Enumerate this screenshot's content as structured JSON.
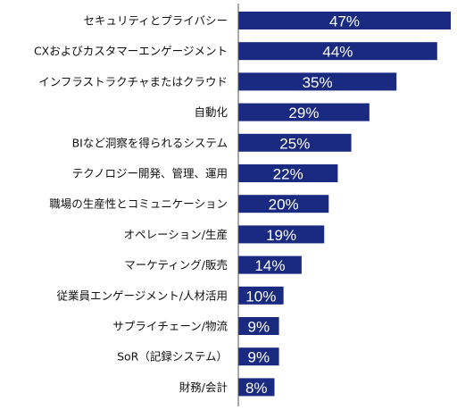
{
  "chart_data": {
    "type": "bar",
    "orientation": "horizontal",
    "title": "",
    "xlabel": "",
    "ylabel": "",
    "xlim": [
      0,
      47
    ],
    "grid": false,
    "legend": "none",
    "bar_color": "#1a2a80",
    "axis_color": "#555555",
    "value_suffix": "%",
    "categories": [
      "セキュリティとプライバシー",
      "CXおよびカスタマーエンゲージメント",
      "インフラストラクチャまたはクラウド",
      "自動化",
      "BIなど洞察を得られるシステム",
      "テクノロジー開発、管理、運用",
      "職場の生産性とコミュニケーション",
      "オペレーション/生産",
      "マーケティング/販売",
      "従業員エンゲージメント/人材活用",
      "サプライチェーン/物流",
      "SoR（記録システム）",
      "財務/会計"
    ],
    "values": [
      47,
      44,
      35,
      29,
      25,
      22,
      20,
      19,
      14,
      10,
      9,
      9,
      8
    ],
    "value_labels": [
      "47%",
      "44%",
      "35%",
      "29%",
      "25%",
      "22%",
      "20%",
      "19%",
      "14%",
      "10%",
      "9%",
      "9%",
      "8%"
    ]
  }
}
